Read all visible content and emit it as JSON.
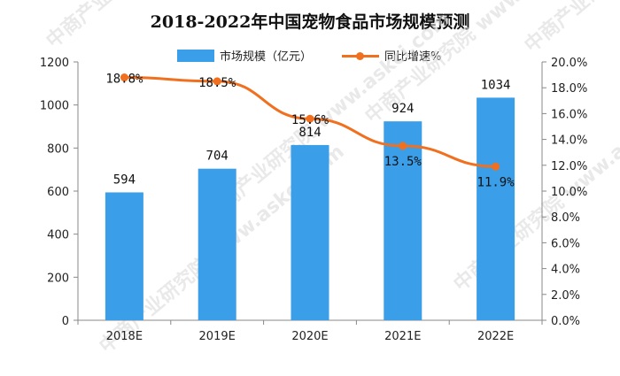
{
  "chart_data": {
    "type": "bar",
    "title": "2018-2022年中国宠物食品市场规模预测",
    "categories": [
      "2018E",
      "2019E",
      "2020E",
      "2021E",
      "2022E"
    ],
    "series": [
      {
        "name": "市场规模（亿元）",
        "type": "bar",
        "axis": "left",
        "values": [
          594,
          704,
          814,
          924,
          1034
        ],
        "labels": [
          "594",
          "704",
          "814",
          "924",
          "1034"
        ],
        "color": "#3b9ee8"
      },
      {
        "name": "同比增速%",
        "type": "line",
        "axis": "right",
        "values": [
          18.8,
          18.5,
          15.6,
          13.5,
          11.9
        ],
        "labels": [
          "18.8%",
          "18.5%",
          "15.6%",
          "13.5%",
          "11.9%"
        ],
        "color": "#f07020"
      }
    ],
    "y_left": {
      "min": 0,
      "max": 1200,
      "ticks": [
        "0",
        "200",
        "400",
        "600",
        "800",
        "1000",
        "1200"
      ]
    },
    "y_right": {
      "min": 0,
      "max": 20,
      "ticks": [
        "0.0%",
        "2.0%",
        "4.0%",
        "6.0%",
        "8.0%",
        "10.0%",
        "12.0%",
        "14.0%",
        "16.0%",
        "18.0%",
        "20.0%"
      ]
    },
    "grid": false,
    "legend_position": "top-center",
    "watermark": "中商产业研究院  www.askci.com"
  }
}
